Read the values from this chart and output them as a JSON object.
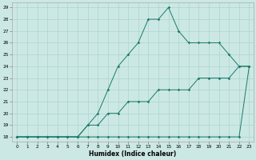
{
  "xlabel": "Humidex (Indice chaleur)",
  "bg_color": "#cce8e4",
  "grid_color": "#aad4cc",
  "line_color": "#1a7a6a",
  "xlim_min": -0.5,
  "xlim_max": 23.4,
  "ylim_min": 17.6,
  "ylim_max": 29.4,
  "xticks": [
    0,
    1,
    2,
    3,
    4,
    5,
    6,
    7,
    8,
    9,
    10,
    11,
    12,
    13,
    14,
    15,
    16,
    17,
    18,
    19,
    20,
    21,
    22,
    23
  ],
  "yticks": [
    18,
    19,
    20,
    21,
    22,
    23,
    24,
    25,
    26,
    27,
    28,
    29
  ],
  "line1_x": [
    0,
    1,
    2,
    3,
    4,
    5,
    6,
    7,
    8,
    9,
    10,
    11,
    12,
    13,
    14,
    15,
    16,
    17,
    18,
    19,
    20,
    21,
    22,
    23
  ],
  "line1_y": [
    18,
    18,
    18,
    18,
    18,
    18,
    18,
    18,
    18,
    18,
    18,
    18,
    18,
    18,
    18,
    18,
    18,
    18,
    18,
    18,
    18,
    18,
    18,
    24
  ],
  "line2_x": [
    0,
    1,
    2,
    3,
    4,
    5,
    6,
    7,
    8,
    9,
    10,
    11,
    12,
    13,
    14,
    15,
    16,
    17,
    18,
    19,
    20,
    21,
    22,
    23
  ],
  "line2_y": [
    18,
    18,
    18,
    18,
    18,
    18,
    18,
    19,
    19,
    20,
    20,
    21,
    21,
    21,
    22,
    22,
    22,
    22,
    23,
    23,
    23,
    23,
    24,
    24
  ],
  "line3_x": [
    0,
    1,
    2,
    3,
    4,
    5,
    6,
    7,
    8,
    9,
    10,
    11,
    12,
    13,
    14,
    15,
    16,
    17,
    18,
    19,
    20,
    21,
    22,
    23
  ],
  "line3_y": [
    18,
    18,
    18,
    18,
    18,
    18,
    18,
    19,
    20,
    22,
    24,
    25,
    26,
    28,
    28,
    29,
    27,
    26,
    26,
    26,
    26,
    25,
    24,
    24
  ]
}
